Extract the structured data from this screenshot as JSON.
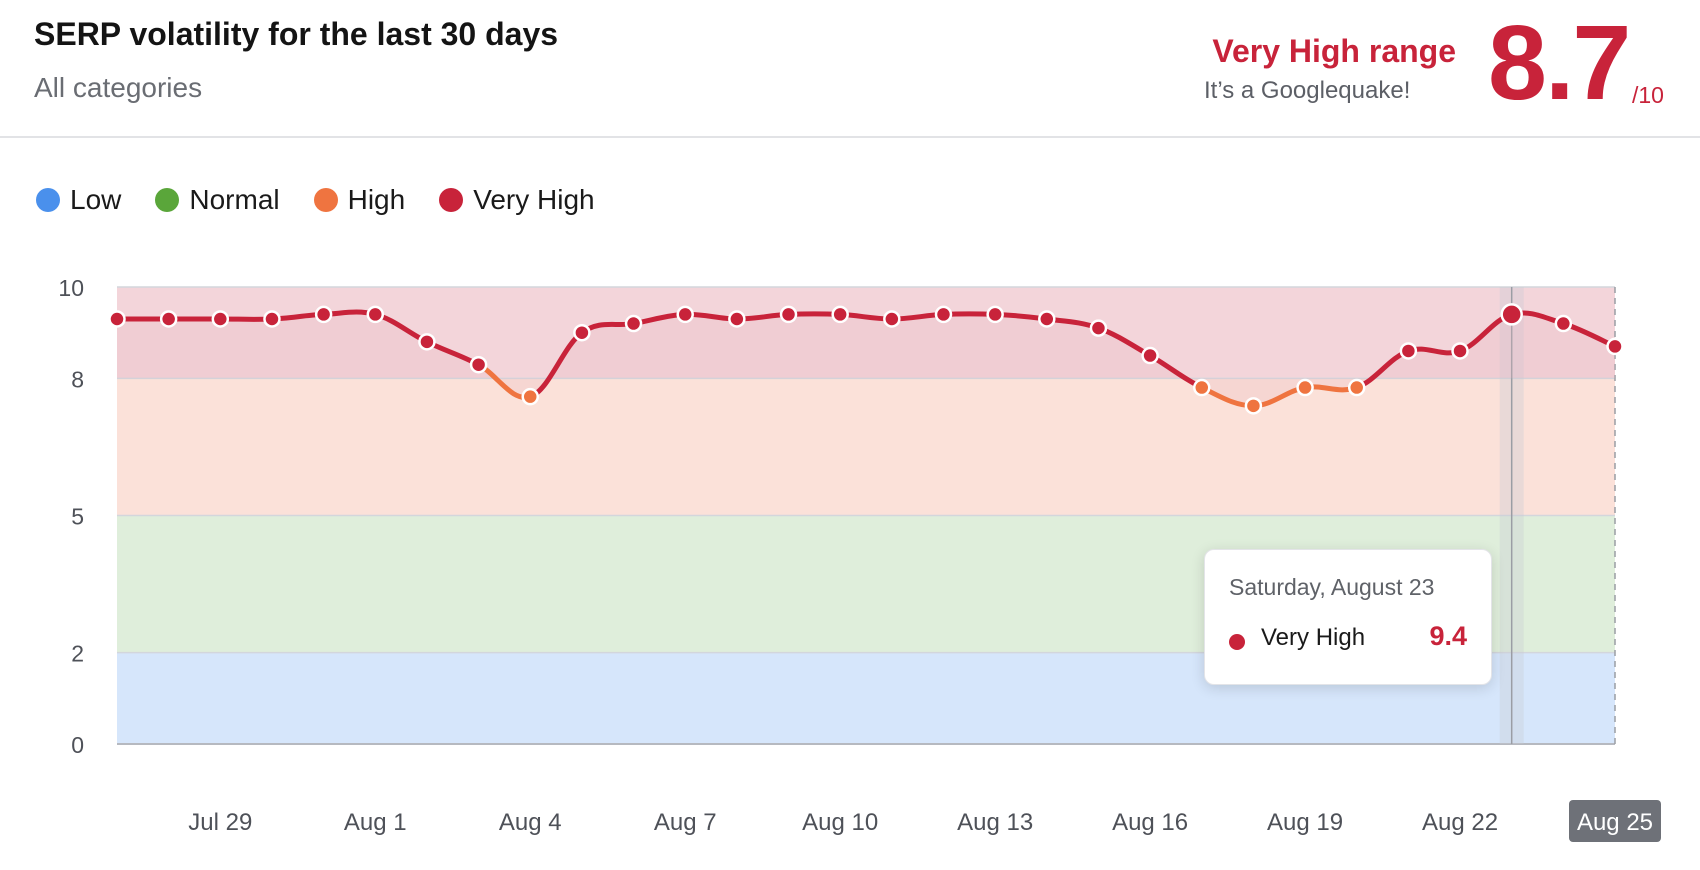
{
  "header": {
    "title": "SERP volatility for the last 30 days",
    "subtitle": "All categories",
    "range_label": "Very High range",
    "range_sub": "It’s a Googlequake!",
    "score": "8.7",
    "score_max": "/10"
  },
  "legend": [
    {
      "label": "Low",
      "color": "#4a90ec"
    },
    {
      "label": "Normal",
      "color": "#5aa63a"
    },
    {
      "label": "High",
      "color": "#ef7440"
    },
    {
      "label": "Very High",
      "color": "#c8233a"
    }
  ],
  "tooltip": {
    "date": "Saturday, August 23",
    "label": "Very High",
    "value": "9.4"
  },
  "chart_data": {
    "type": "line",
    "x": [
      "Jul 27",
      "Jul 28",
      "Jul 29",
      "Jul 30",
      "Jul 31",
      "Aug 1",
      "Aug 2",
      "Aug 3",
      "Aug 4",
      "Aug 5",
      "Aug 6",
      "Aug 7",
      "Aug 8",
      "Aug 9",
      "Aug 10",
      "Aug 11",
      "Aug 12",
      "Aug 13",
      "Aug 14",
      "Aug 15",
      "Aug 16",
      "Aug 17",
      "Aug 18",
      "Aug 19",
      "Aug 20",
      "Aug 21",
      "Aug 22",
      "Aug 23",
      "Aug 24",
      "Aug 25"
    ],
    "values": [
      9.3,
      9.3,
      9.3,
      9.3,
      9.4,
      9.4,
      8.8,
      8.3,
      7.6,
      9.0,
      9.2,
      9.4,
      9.3,
      9.4,
      9.4,
      9.3,
      9.4,
      9.4,
      9.3,
      9.1,
      8.5,
      7.8,
      7.4,
      7.8,
      7.8,
      8.6,
      8.6,
      9.4,
      9.2,
      8.7
    ],
    "x_tick_labels": [
      "Jul 29",
      "Aug 1",
      "Aug 4",
      "Aug 7",
      "Aug 10",
      "Aug 13",
      "Aug 16",
      "Aug 19",
      "Aug 22",
      "Aug 25"
    ],
    "highlighted_tick": "Aug 25",
    "y_ticks": [
      0,
      2,
      5,
      8,
      10
    ],
    "ylim": [
      0,
      10
    ],
    "bands": [
      {
        "name": "Low",
        "from": 0,
        "to": 2,
        "color": "#d6e6fb"
      },
      {
        "name": "Normal",
        "from": 2,
        "to": 5,
        "color": "#dfeedb"
      },
      {
        "name": "High",
        "from": 5,
        "to": 8,
        "color": "#fbe1d9"
      },
      {
        "name": "Very High",
        "from": 8,
        "to": 10,
        "color": "#f3d5da"
      }
    ],
    "highlight_index": 27,
    "grid": true,
    "legend_position": "top-left"
  }
}
